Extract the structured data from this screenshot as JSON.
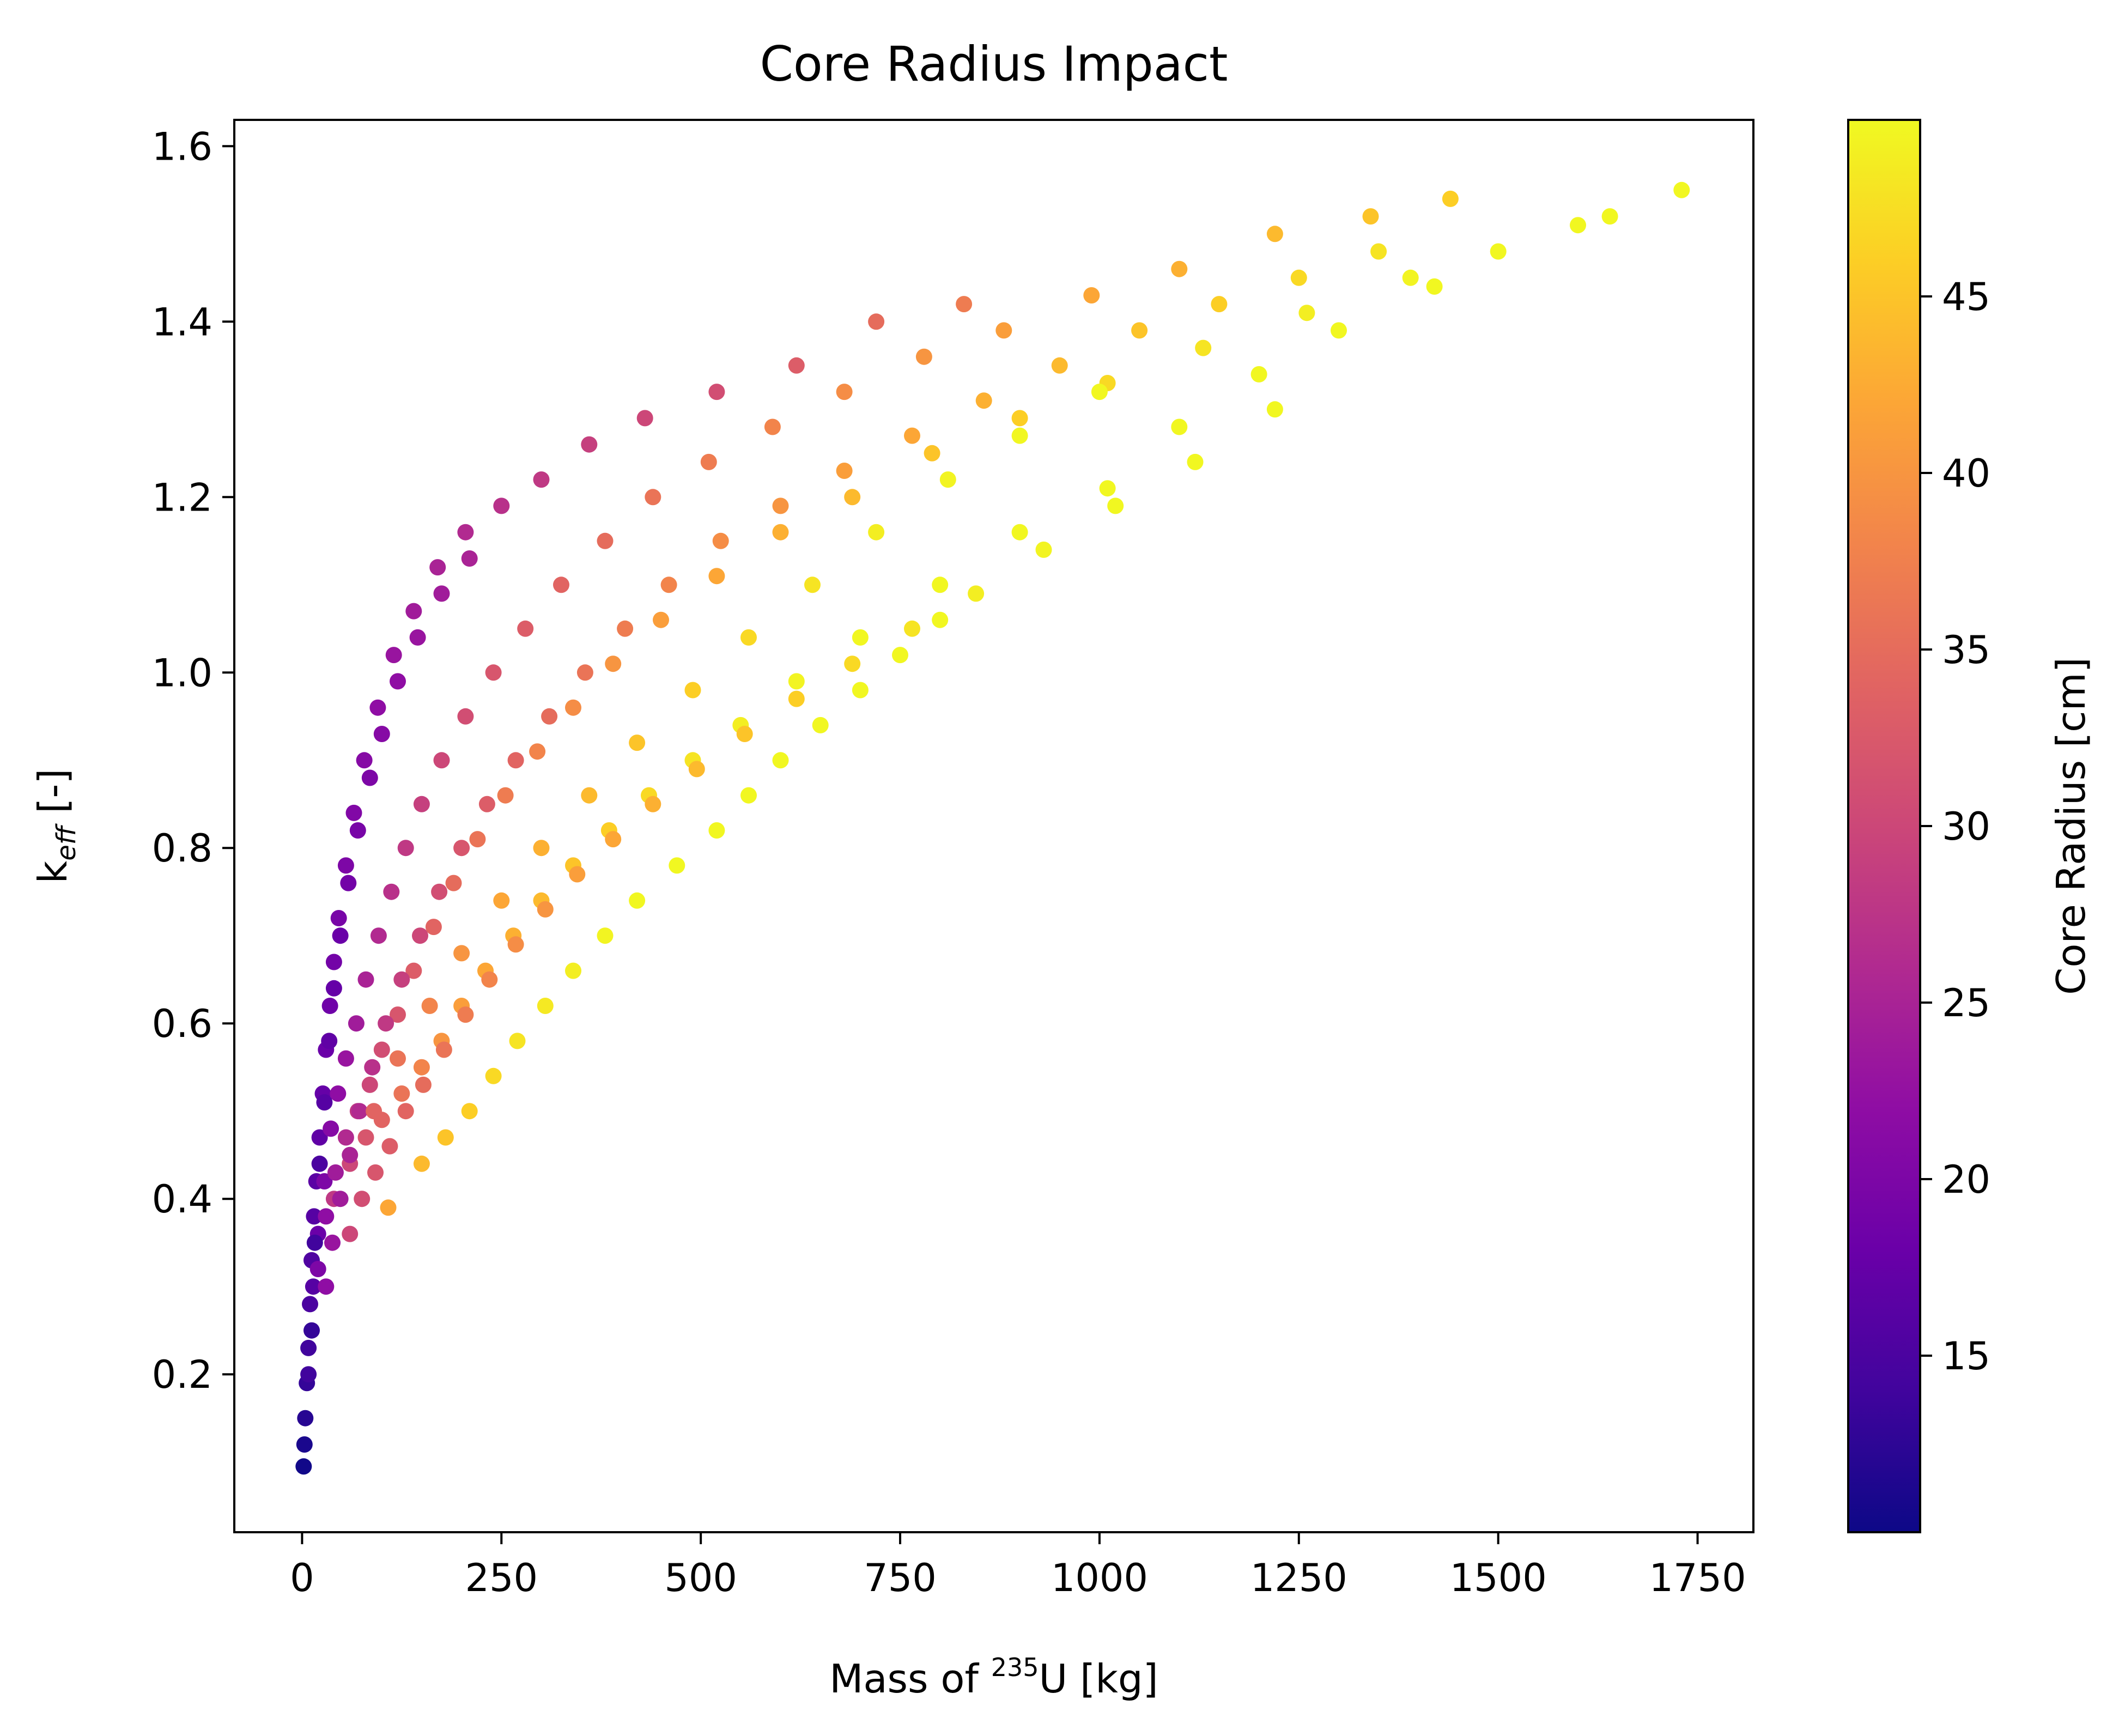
{
  "chart_data": {
    "type": "scatter",
    "title": "Core Radius Impact",
    "xlabel": {
      "prefix": "Mass of ",
      "sup": "235",
      "suffix": "U [kg]"
    },
    "ylabel": {
      "base": "k",
      "sub": "eff",
      "suffix": " [-]"
    },
    "xlim": [
      -85,
      1820
    ],
    "ylim": [
      0.02,
      1.63
    ],
    "xticks": [
      0,
      250,
      500,
      750,
      1000,
      1250,
      1500,
      1750
    ],
    "xtick_labels": [
      "0",
      "250",
      "500",
      "750",
      "1000",
      "1250",
      "1500",
      "1750"
    ],
    "yticks": [
      0.2,
      0.4,
      0.6,
      0.8,
      1.0,
      1.2,
      1.4,
      1.6
    ],
    "ytick_labels": [
      "0.2",
      "0.4",
      "0.6",
      "0.8",
      "1.0",
      "1.2",
      "1.4",
      "1.6"
    ],
    "colorbar": {
      "label": "Core Radius [cm]",
      "colormap": "plasma",
      "range": [
        10,
        50
      ],
      "ticks": [
        15,
        20,
        25,
        30,
        35,
        40,
        45
      ],
      "tick_labels": [
        "15",
        "20",
        "25",
        "30",
        "35",
        "40",
        "45"
      ]
    },
    "grid": false,
    "legend": "none",
    "series": [
      {
        "points": [
          [
            2,
            0.095,
            10.3
          ],
          [
            3,
            0.12,
            11
          ],
          [
            4,
            0.15,
            12
          ],
          [
            6,
            0.19,
            13
          ],
          [
            8,
            0.23,
            14
          ],
          [
            10,
            0.28,
            15
          ],
          [
            12,
            0.33,
            15.5
          ],
          [
            15,
            0.38,
            16
          ],
          [
            18,
            0.42,
            16.5
          ],
          [
            22,
            0.47,
            17
          ],
          [
            26,
            0.52,
            17.5
          ],
          [
            30,
            0.57,
            18
          ],
          [
            35,
            0.62,
            18.5
          ],
          [
            40,
            0.67,
            19
          ],
          [
            46,
            0.72,
            19.5
          ],
          [
            55,
            0.78,
            20
          ],
          [
            65,
            0.84,
            20.5
          ],
          [
            78,
            0.9,
            21
          ],
          [
            95,
            0.96,
            22
          ],
          [
            115,
            1.02,
            23
          ],
          [
            140,
            1.07,
            24
          ],
          [
            170,
            1.12,
            25
          ],
          [
            205,
            1.16,
            26
          ],
          [
            250,
            1.19,
            27
          ],
          [
            300,
            1.22,
            28
          ],
          [
            360,
            1.26,
            29
          ],
          [
            430,
            1.29,
            30
          ],
          [
            520,
            1.32,
            31
          ],
          [
            620,
            1.35,
            33
          ],
          [
            720,
            1.4,
            35
          ],
          [
            830,
            1.42,
            37
          ],
          [
            8,
            0.2,
            14
          ],
          [
            14,
            0.3,
            16
          ],
          [
            20,
            0.36,
            18
          ],
          [
            28,
            0.42,
            20
          ],
          [
            36,
            0.48,
            21
          ],
          [
            45,
            0.52,
            22
          ],
          [
            55,
            0.56,
            23
          ],
          [
            68,
            0.6,
            24
          ],
          [
            80,
            0.65,
            25
          ],
          [
            96,
            0.7,
            26
          ],
          [
            112,
            0.75,
            27
          ],
          [
            130,
            0.8,
            28
          ],
          [
            150,
            0.85,
            29
          ],
          [
            175,
            0.9,
            30
          ],
          [
            205,
            0.95,
            31
          ],
          [
            240,
            1.0,
            32
          ],
          [
            280,
            1.05,
            33
          ],
          [
            325,
            1.1,
            34
          ],
          [
            380,
            1.15,
            35
          ],
          [
            440,
            1.2,
            36
          ],
          [
            510,
            1.24,
            37
          ],
          [
            590,
            1.28,
            38
          ],
          [
            680,
            1.32,
            39
          ],
          [
            780,
            1.36,
            40
          ],
          [
            880,
            1.39,
            41
          ],
          [
            990,
            1.43,
            42
          ],
          [
            1100,
            1.46,
            43
          ],
          [
            1220,
            1.5,
            44
          ],
          [
            1340,
            1.52,
            45
          ],
          [
            1440,
            1.54,
            46
          ],
          [
            20,
            0.32,
            20
          ],
          [
            30,
            0.38,
            22
          ],
          [
            42,
            0.43,
            24
          ],
          [
            55,
            0.47,
            26
          ],
          [
            70,
            0.5,
            28
          ],
          [
            85,
            0.53,
            30
          ],
          [
            100,
            0.57,
            31
          ],
          [
            120,
            0.61,
            32
          ],
          [
            140,
            0.66,
            33
          ],
          [
            165,
            0.71,
            34
          ],
          [
            190,
            0.76,
            35
          ],
          [
            220,
            0.81,
            36
          ],
          [
            255,
            0.86,
            37
          ],
          [
            295,
            0.91,
            38
          ],
          [
            340,
            0.96,
            39
          ],
          [
            390,
            1.01,
            40
          ],
          [
            450,
            1.06,
            41
          ],
          [
            520,
            1.11,
            42
          ],
          [
            600,
            1.16,
            43
          ],
          [
            690,
            1.2,
            44
          ],
          [
            790,
            1.25,
            45
          ],
          [
            900,
            1.29,
            46
          ],
          [
            1010,
            1.33,
            47
          ],
          [
            1130,
            1.37,
            48
          ],
          [
            1260,
            1.41,
            49
          ],
          [
            1390,
            1.45,
            49.5
          ],
          [
            1500,
            1.48,
            49.8
          ],
          [
            1600,
            1.51,
            49.8
          ],
          [
            1640,
            1.52,
            49.8
          ],
          [
            1730,
            1.55,
            49.8
          ],
          [
            40,
            0.4,
            28
          ],
          [
            60,
            0.44,
            30
          ],
          [
            80,
            0.47,
            32
          ],
          [
            100,
            0.49,
            34
          ],
          [
            125,
            0.52,
            36
          ],
          [
            150,
            0.55,
            38
          ],
          [
            175,
            0.58,
            40
          ],
          [
            200,
            0.62,
            41
          ],
          [
            230,
            0.66,
            42
          ],
          [
            265,
            0.7,
            43
          ],
          [
            300,
            0.74,
            44
          ],
          [
            340,
            0.78,
            45
          ],
          [
            385,
            0.82,
            46
          ],
          [
            435,
            0.86,
            47
          ],
          [
            490,
            0.9,
            48
          ],
          [
            550,
            0.94,
            49
          ],
          [
            620,
            0.99,
            49.5
          ],
          [
            700,
            1.04,
            49.8
          ],
          [
            800,
            1.1,
            49.8
          ],
          [
            900,
            1.16,
            49.8
          ],
          [
            1010,
            1.21,
            49.8
          ],
          [
            1100,
            1.28,
            49.8
          ],
          [
            1200,
            1.34,
            49.8
          ],
          [
            1300,
            1.39,
            49.8
          ],
          [
            1420,
            1.44,
            49.8
          ],
          [
            108,
            0.39,
            42
          ],
          [
            150,
            0.44,
            44
          ],
          [
            180,
            0.47,
            45
          ],
          [
            210,
            0.5,
            46
          ],
          [
            240,
            0.54,
            47
          ],
          [
            270,
            0.58,
            48
          ],
          [
            305,
            0.62,
            48.5
          ],
          [
            340,
            0.66,
            49
          ],
          [
            380,
            0.7,
            49.5
          ],
          [
            420,
            0.74,
            49.8
          ],
          [
            470,
            0.78,
            49.8
          ],
          [
            520,
            0.82,
            49.8
          ],
          [
            560,
            0.86,
            49.8
          ],
          [
            600,
            0.9,
            49.8
          ],
          [
            650,
            0.94,
            49.8
          ],
          [
            700,
            0.98,
            49.8
          ],
          [
            750,
            1.02,
            49.8
          ],
          [
            800,
            1.06,
            49.8
          ],
          [
            12,
            0.25,
            13
          ],
          [
            16,
            0.35,
            14
          ],
          [
            22,
            0.44,
            15
          ],
          [
            28,
            0.51,
            16
          ],
          [
            34,
            0.58,
            17
          ],
          [
            40,
            0.64,
            17.5
          ],
          [
            48,
            0.7,
            18
          ],
          [
            58,
            0.76,
            19
          ],
          [
            70,
            0.82,
            19.5
          ],
          [
            85,
            0.88,
            20
          ],
          [
            100,
            0.93,
            21
          ],
          [
            120,
            0.99,
            22
          ],
          [
            145,
            1.04,
            23
          ],
          [
            175,
            1.09,
            24
          ],
          [
            210,
            1.13,
            25
          ],
          [
            30,
            0.3,
            22
          ],
          [
            38,
            0.35,
            23
          ],
          [
            48,
            0.4,
            24
          ],
          [
            60,
            0.45,
            25
          ],
          [
            72,
            0.5,
            26
          ],
          [
            88,
            0.55,
            27
          ],
          [
            105,
            0.6,
            28
          ],
          [
            125,
            0.65,
            29
          ],
          [
            148,
            0.7,
            30
          ],
          [
            172,
            0.75,
            31
          ],
          [
            200,
            0.8,
            32
          ],
          [
            232,
            0.85,
            33
          ],
          [
            268,
            0.9,
            34
          ],
          [
            310,
            0.95,
            35
          ],
          [
            355,
            1.0,
            36
          ],
          [
            405,
            1.05,
            37
          ],
          [
            460,
            1.1,
            38
          ],
          [
            525,
            1.15,
            39
          ],
          [
            600,
            1.19,
            40
          ],
          [
            680,
            1.23,
            41
          ],
          [
            765,
            1.27,
            42
          ],
          [
            855,
            1.31,
            43
          ],
          [
            950,
            1.35,
            44
          ],
          [
            1050,
            1.39,
            45
          ],
          [
            1150,
            1.42,
            46
          ],
          [
            1250,
            1.45,
            47
          ],
          [
            1350,
            1.48,
            48
          ],
          [
            60,
            0.36,
            30
          ],
          [
            75,
            0.4,
            31
          ],
          [
            92,
            0.43,
            32
          ],
          [
            110,
            0.46,
            33
          ],
          [
            130,
            0.5,
            34
          ],
          [
            152,
            0.53,
            35
          ],
          [
            178,
            0.57,
            36
          ],
          [
            205,
            0.61,
            37
          ],
          [
            235,
            0.65,
            38
          ],
          [
            268,
            0.69,
            39
          ],
          [
            305,
            0.73,
            40
          ],
          [
            345,
            0.77,
            41
          ],
          [
            390,
            0.81,
            42
          ],
          [
            440,
            0.85,
            43
          ],
          [
            495,
            0.89,
            44
          ],
          [
            555,
            0.93,
            45
          ],
          [
            620,
            0.97,
            46
          ],
          [
            690,
            1.01,
            47
          ],
          [
            765,
            1.05,
            48
          ],
          [
            845,
            1.09,
            49
          ],
          [
            930,
            1.14,
            49.5
          ],
          [
            1020,
            1.19,
            49.8
          ],
          [
            1120,
            1.24,
            49.8
          ],
          [
            1220,
            1.3,
            49.8
          ],
          [
            90,
            0.5,
            34
          ],
          [
            120,
            0.56,
            36
          ],
          [
            160,
            0.62,
            38
          ],
          [
            200,
            0.68,
            40
          ],
          [
            250,
            0.74,
            42
          ],
          [
            300,
            0.8,
            43
          ],
          [
            360,
            0.86,
            44
          ],
          [
            420,
            0.92,
            45
          ],
          [
            490,
            0.98,
            46
          ],
          [
            560,
            1.04,
            47
          ],
          [
            640,
            1.1,
            48
          ],
          [
            720,
            1.16,
            49
          ],
          [
            810,
            1.22,
            49.5
          ],
          [
            900,
            1.27,
            49.8
          ],
          [
            1000,
            1.32,
            49.8
          ]
        ]
      }
    ]
  }
}
